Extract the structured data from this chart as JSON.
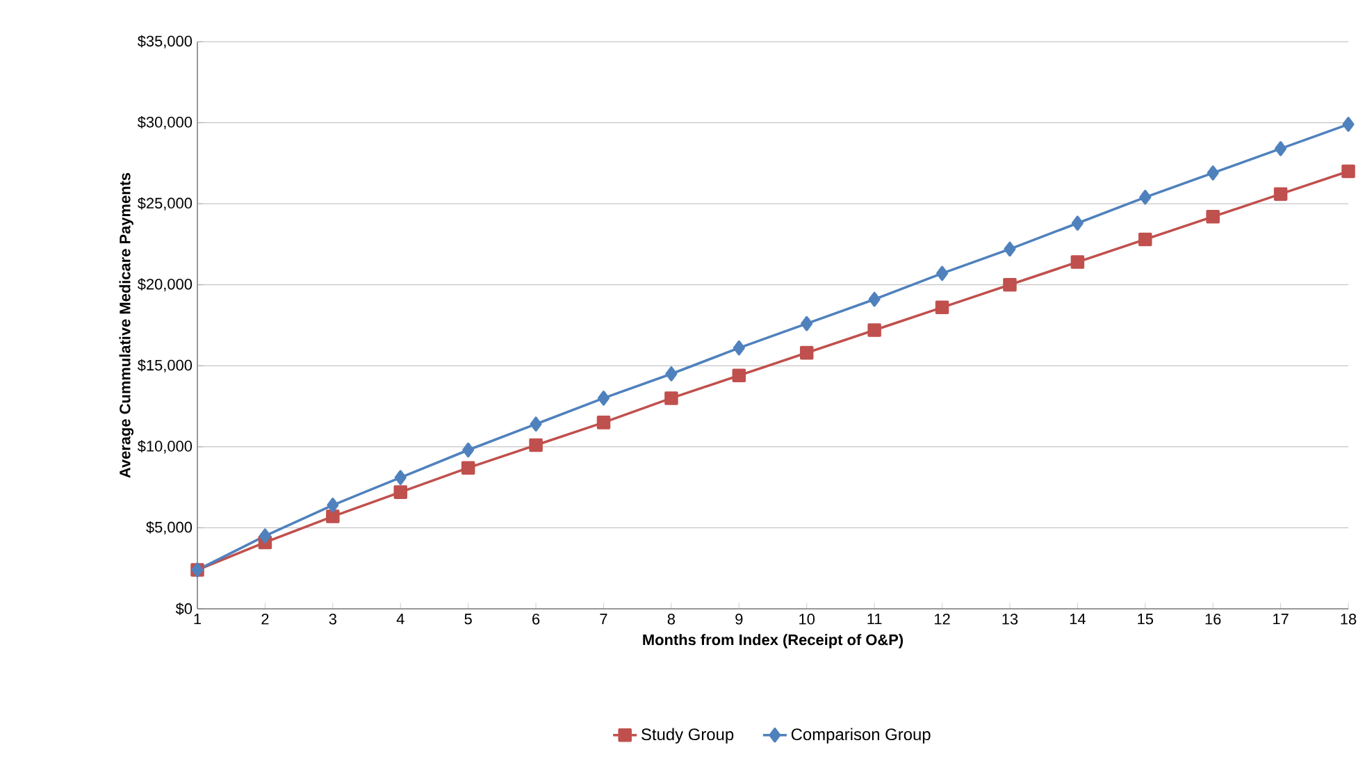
{
  "chart_data": {
    "type": "line",
    "xlabel": "Months from Index (Receipt of O&P)",
    "ylabel": "Average Cummulative Medicare Payments",
    "x": [
      1,
      2,
      3,
      4,
      5,
      6,
      7,
      8,
      9,
      10,
      11,
      12,
      13,
      14,
      15,
      16,
      17,
      18
    ],
    "xlim": [
      1,
      18
    ],
    "xticks": [
      1,
      2,
      3,
      4,
      5,
      6,
      7,
      8,
      9,
      10,
      11,
      12,
      13,
      14,
      15,
      16,
      17,
      18
    ],
    "ylim": [
      0,
      35000
    ],
    "yticks": [
      {
        "value": 0,
        "label": "$0"
      },
      {
        "value": 5000,
        "label": "$5,000"
      },
      {
        "value": 10000,
        "label": "$10,000"
      },
      {
        "value": 15000,
        "label": "$15,000"
      },
      {
        "value": 20000,
        "label": "$20,000"
      },
      {
        "value": 25000,
        "label": "$25,000"
      },
      {
        "value": 30000,
        "label": "$30,000"
      },
      {
        "value": 35000,
        "label": "$35,000"
      }
    ],
    "grid": "y",
    "legend": "bottom",
    "line_style": "solid",
    "series": [
      {
        "name": "Study Group",
        "color": "#c0504d",
        "marker": "square",
        "values": [
          2400,
          4100,
          5700,
          7200,
          8700,
          10100,
          11500,
          13000,
          14400,
          15800,
          17200,
          18600,
          20000,
          21400,
          22800,
          24200,
          25600,
          27000
        ]
      },
      {
        "name": "Comparison Group",
        "color": "#4f81bd",
        "marker": "diamond",
        "values": [
          2400,
          4500,
          6400,
          8100,
          9800,
          11400,
          13000,
          14500,
          16100,
          17600,
          19100,
          20700,
          22200,
          23800,
          25400,
          26900,
          28400,
          29900
        ]
      }
    ]
  }
}
